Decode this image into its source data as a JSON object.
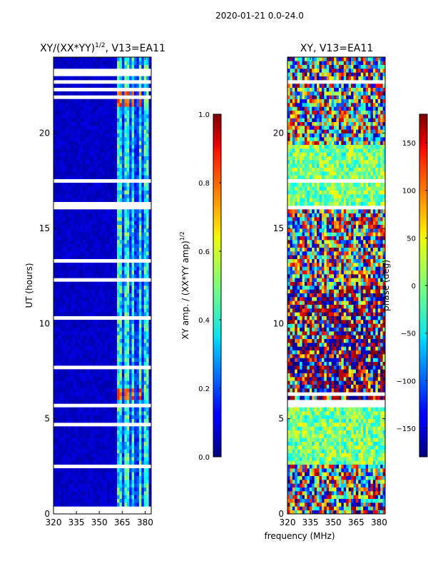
{
  "suptitle": "2020-01-21 0.0-24.0",
  "xlabel_shared": "frequency (MHz)",
  "chart_data": [
    {
      "type": "heatmap",
      "title_main": "XY/(XX*YY)",
      "title_exp": "1/2",
      "title_tail": ", V13=EA11",
      "ylabel": "UT (hours)",
      "xlim": [
        320,
        384
      ],
      "ylim": [
        0,
        24
      ],
      "xticks": [
        320,
        335,
        350,
        365,
        380
      ],
      "xtick_labels": [
        "320",
        "335",
        "350",
        "365",
        "380"
      ],
      "yticks": [
        0,
        5,
        10,
        15,
        20
      ],
      "ytick_labels": [
        "0",
        "5",
        "10",
        "15",
        "20"
      ],
      "colorbar": {
        "label_main": "XY amp. / (XX*YY amp)",
        "label_exp": "1/2",
        "range": [
          0.0,
          1.0
        ],
        "ticks": [
          0.0,
          0.2,
          0.4,
          0.6,
          0.8,
          1.0
        ],
        "tick_labels": [
          "0.0",
          "0.2",
          "0.4",
          "0.6",
          "0.8",
          "1.0"
        ]
      },
      "blank_ut_bands": [
        [
          0.1,
          0.15
        ],
        [
          0.3,
          0.35
        ],
        [
          1.75,
          1.8
        ],
        [
          2.0,
          2.05
        ],
        [
          2.25,
          2.3
        ],
        [
          2.4,
          2.6
        ],
        [
          4.2,
          4.3
        ],
        [
          4.7,
          4.8
        ],
        [
          5.55,
          5.8
        ],
        [
          7.7,
          7.8
        ],
        [
          9.6,
          9.7
        ],
        [
          10.2,
          10.35
        ],
        [
          12.2,
          12.3
        ],
        [
          13.3,
          13.4
        ],
        [
          15.9,
          16.5
        ],
        [
          17.4,
          17.6
        ],
        [
          18.0,
          18.1
        ],
        [
          21.0,
          21.1
        ],
        [
          21.9,
          22.0
        ],
        [
          22.3,
          22.4
        ],
        [
          22.7,
          22.8
        ],
        [
          23.1,
          23.5
        ]
      ],
      "features": "Low amplitude (~0.05) at 320-362 MHz; periodic bright channels (0.3-0.6) at ~363-381 MHz; peaks ~0.8 near 363-376 MHz at UT 6.0-6.5 and UT 21.5-22"
    },
    {
      "type": "heatmap",
      "title": "XY, V13=EA11",
      "xlim": [
        320,
        384
      ],
      "ylim": [
        0,
        24
      ],
      "xticks": [
        320,
        335,
        350,
        365,
        380
      ],
      "xtick_labels": [
        "320",
        "335",
        "350",
        "365",
        "380"
      ],
      "yticks": [
        0,
        5,
        10,
        15,
        20
      ],
      "ytick_labels": [
        "0",
        "5",
        "10",
        "15",
        "20"
      ],
      "colorbar": {
        "label": "phase (deg)",
        "range": [
          -180,
          180
        ],
        "ticks": [
          -150,
          -100,
          -50,
          0,
          50,
          100,
          150
        ],
        "tick_labels": [
          "−150",
          "−100",
          "−50",
          "0",
          "50",
          "100",
          "150"
        ]
      },
      "blank_ut_bands": [
        [
          2.1,
          2.2
        ],
        [
          2.4,
          2.5
        ],
        [
          4.2,
          4.3
        ],
        [
          5.6,
          5.95
        ],
        [
          6.3,
          6.4
        ],
        [
          13.2,
          13.3
        ],
        [
          15.9,
          16.1
        ],
        [
          17.5,
          17.7
        ],
        [
          21.3,
          21.5
        ],
        [
          22.1,
          22.3
        ],
        [
          22.6,
          22.8
        ],
        [
          23.2,
          23.3
        ]
      ],
      "features": "Phase noise across full band; banded patches near 0 deg at UT 2.5-6 and 16-20; strong +/-180 wraps at UT 6-12"
    }
  ]
}
